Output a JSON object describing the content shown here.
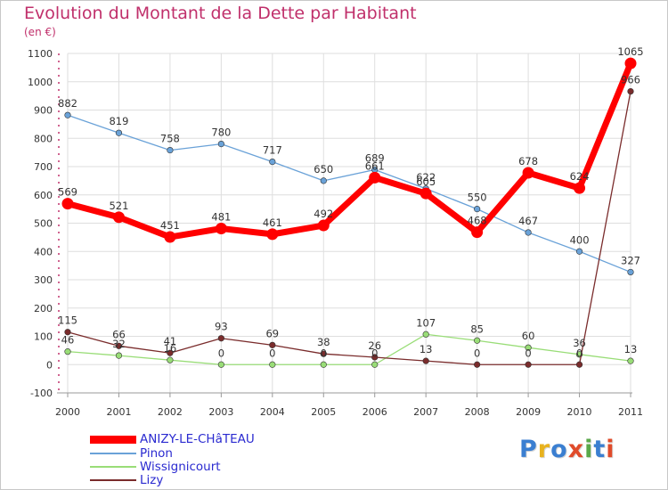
{
  "title": "Evolution du Montant de la Dette par Habitant",
  "subtitle": "(en €)",
  "logo": {
    "text": "Proxiti",
    "colors": [
      "#3b7fd1",
      "#e8b21e",
      "#3b7fd1",
      "#e04b2a",
      "#5aa84a",
      "#3b7fd1",
      "#e04b2a"
    ]
  },
  "chart_data": {
    "type": "line",
    "title": "Evolution du Montant de la Dette par Habitant",
    "subtitle": "(en €)",
    "xlabel": "",
    "ylabel": "",
    "categories": [
      "2000",
      "2001",
      "2002",
      "2003",
      "2004",
      "2005",
      "2006",
      "2007",
      "2008",
      "2009",
      "2010",
      "2011"
    ],
    "ylim": [
      -100,
      1100
    ],
    "yticks": [
      -100,
      0,
      100,
      200,
      300,
      400,
      500,
      600,
      700,
      800,
      900,
      1000,
      1100
    ],
    "grid": true,
    "legend_position": "bottom-left",
    "series": [
      {
        "name": "ANIZY-LE-CHâTEAU",
        "color": "#ff0000",
        "values": [
          569,
          521,
          451,
          481,
          461,
          492,
          661,
          605,
          468,
          678,
          624,
          1065
        ]
      },
      {
        "name": "Pinon",
        "color": "#6aa2d8",
        "values": [
          882,
          819,
          758,
          780,
          717,
          650,
          689,
          622,
          550,
          467,
          400,
          327
        ]
      },
      {
        "name": "Wissignicourt",
        "color": "#99dd77",
        "values": [
          46,
          32,
          16,
          0,
          0,
          0,
          0,
          107,
          85,
          60,
          36,
          13
        ]
      },
      {
        "name": "Lizy",
        "color": "#7a2c2c",
        "values": [
          115,
          66,
          41,
          93,
          69,
          38,
          26,
          13,
          0,
          0,
          0,
          966
        ]
      }
    ]
  }
}
